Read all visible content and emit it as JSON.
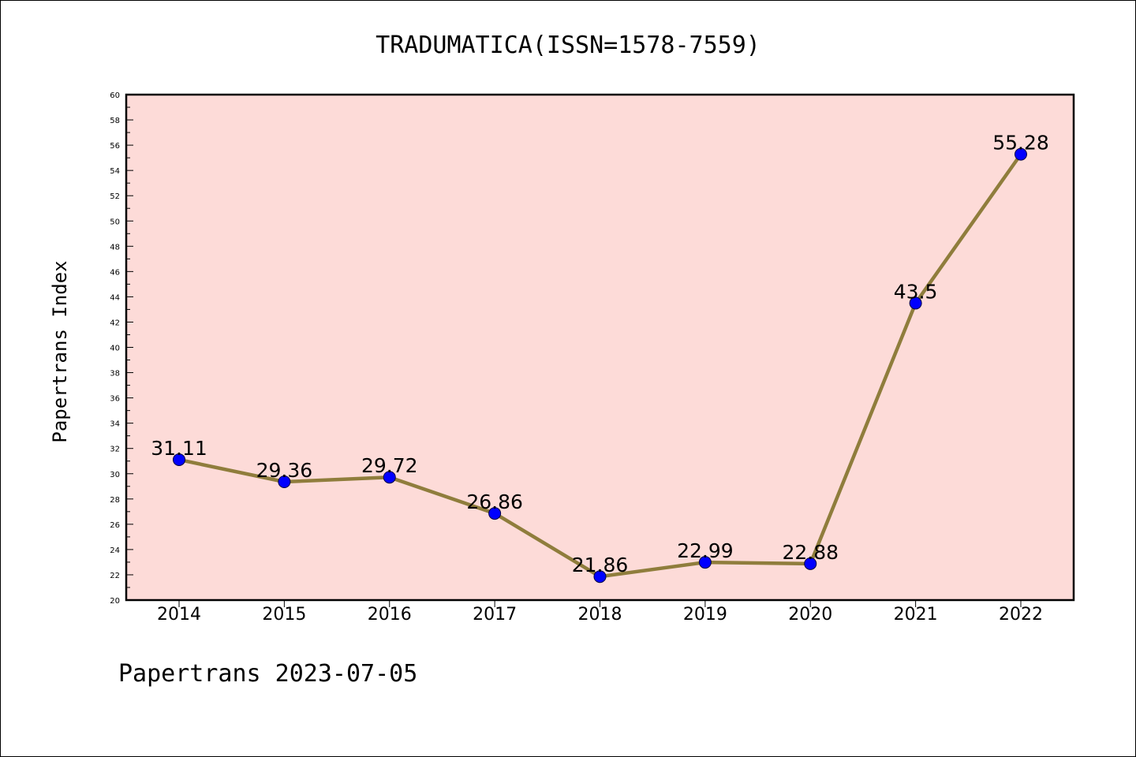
{
  "chart_data": {
    "type": "line",
    "title": "TRADUMATICA(ISSN=1578-7559)",
    "xlabel": "",
    "ylabel": "Papertrans Index",
    "categories": [
      "2014",
      "2015",
      "2016",
      "2017",
      "2018",
      "2019",
      "2020",
      "2021",
      "2022"
    ],
    "values": [
      31.11,
      29.36,
      29.72,
      26.86,
      21.86,
      22.99,
      22.88,
      43.5,
      55.28
    ],
    "data_labels": [
      "31.11",
      "29.36",
      "29.72",
      "26.86",
      "21.86",
      "22.99",
      "22.88",
      "43.5",
      "55.28"
    ],
    "ylim": [
      20,
      60
    ],
    "y_ticks": [
      "20",
      "22",
      "24",
      "26",
      "28",
      "30",
      "32",
      "34",
      "36",
      "38",
      "40",
      "42",
      "44",
      "46",
      "48",
      "50",
      "52",
      "54",
      "56",
      "58",
      "60"
    ],
    "grid": false,
    "legend": "none",
    "footer": "Papertrans 2023-07-05",
    "colors": {
      "plot_background": "#fddbd8",
      "line": "#8f7d3c",
      "marker": "#0000ff",
      "axes": "#000000"
    }
  }
}
